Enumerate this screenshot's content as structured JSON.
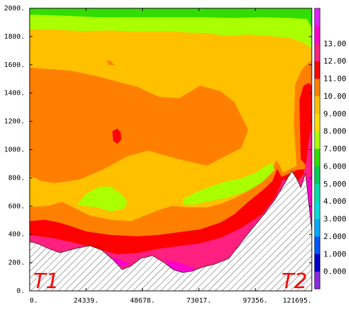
{
  "chart_data": {
    "type": "heatmap",
    "title": "",
    "xlabel": "",
    "ylabel": "",
    "xlim": [
      0,
      121695
    ],
    "ylim": [
      0,
      2000
    ],
    "x_tick_labels": [
      "0.",
      "24339.",
      "48678.",
      "73017.",
      "97356.",
      "121695."
    ],
    "y_tick_labels": [
      "0.",
      "200.",
      "400.",
      "600.",
      "800.",
      "1000.",
      "1200.",
      "1400.",
      "1600.",
      "1800.",
      "2000."
    ],
    "y_ticks": [
      0,
      200,
      400,
      600,
      800,
      1000,
      1200,
      1400,
      1600,
      1800,
      2000
    ],
    "annotations": [
      {
        "text": "T1",
        "position": "bottom-left",
        "color": "#ff0000"
      },
      {
        "text": "T2",
        "position": "bottom-right",
        "color": "#ff0000"
      }
    ],
    "legend": "right colorbar",
    "colorbar": {
      "tick_labels": [
        "0.000",
        "1.000",
        "2.000",
        "3.000",
        "4.000",
        "5.000",
        "6.000",
        "7.000",
        "8.000",
        "9.000",
        "10.00",
        "11.00",
        "12.00",
        "13.00"
      ],
      "levels": [
        -1,
        0,
        1,
        2,
        3,
        4,
        5,
        6,
        7,
        8,
        9,
        10,
        11,
        12,
        13,
        14
      ],
      "colors": [
        "#8a2be2",
        "#0000cc",
        "#0055ff",
        "#00aaff",
        "#00dddd",
        "#00ddaa",
        "#00cc55",
        "#33dd00",
        "#aaff00",
        "#ffdd00",
        "#ffc000",
        "#ff8000",
        "#ff0000",
        "#ff2080",
        "#ff00cc",
        "#e020ff"
      ]
    },
    "terrain": [
      [
        0,
        350
      ],
      [
        4000,
        330
      ],
      [
        8000,
        300
      ],
      [
        13000,
        270
      ],
      [
        20000,
        300
      ],
      [
        26000,
        320
      ],
      [
        31000,
        290
      ],
      [
        36000,
        220
      ],
      [
        40000,
        150
      ],
      [
        44000,
        180
      ],
      [
        48000,
        230
      ],
      [
        53000,
        250
      ],
      [
        58000,
        200
      ],
      [
        62000,
        150
      ],
      [
        66000,
        130
      ],
      [
        70000,
        140
      ],
      [
        75000,
        170
      ],
      [
        80000,
        190
      ],
      [
        86000,
        230
      ],
      [
        93000,
        380
      ],
      [
        100000,
        520
      ],
      [
        106000,
        650
      ],
      [
        110000,
        760
      ],
      [
        113000,
        850
      ],
      [
        115000,
        800
      ],
      [
        117000,
        730
      ],
      [
        119000,
        830
      ],
      [
        121695,
        430
      ]
    ]
  }
}
